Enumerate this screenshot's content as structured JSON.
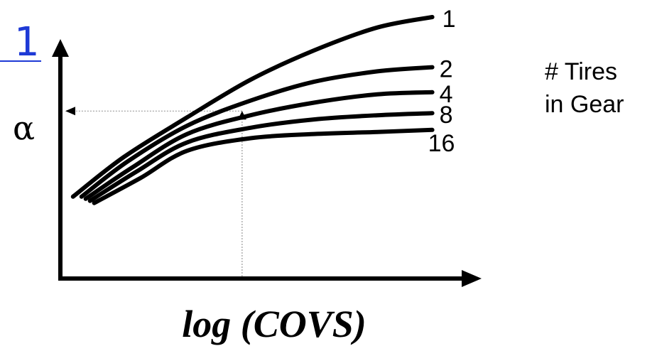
{
  "corner_marker": {
    "text": "1",
    "color": "#1e3ad6"
  },
  "chart_data": {
    "type": "line",
    "ylabel": "α",
    "xlabel": "log (COVS)",
    "legend_title": [
      "# Tires",
      "in Gear"
    ],
    "legend_placement": "right",
    "grid": false,
    "line_color": "#000000",
    "guide_color": "#999999",
    "series": [
      {
        "name": "1",
        "points": [
          [
            0.03,
            0.14
          ],
          [
            0.15,
            0.33
          ],
          [
            0.3,
            0.52
          ],
          [
            0.45,
            0.7
          ],
          [
            0.6,
            0.84
          ],
          [
            0.75,
            0.95
          ],
          [
            0.88,
            1.0
          ]
        ]
      },
      {
        "name": "2",
        "points": [
          [
            0.05,
            0.14
          ],
          [
            0.16,
            0.31
          ],
          [
            0.3,
            0.48
          ],
          [
            0.45,
            0.6
          ],
          [
            0.6,
            0.69
          ],
          [
            0.75,
            0.74
          ],
          [
            0.88,
            0.76
          ]
        ]
      },
      {
        "name": "4",
        "points": [
          [
            0.06,
            0.13
          ],
          [
            0.17,
            0.28
          ],
          [
            0.3,
            0.44
          ],
          [
            0.45,
            0.53
          ],
          [
            0.6,
            0.59
          ],
          [
            0.75,
            0.63
          ],
          [
            0.88,
            0.64
          ]
        ]
      },
      {
        "name": "8",
        "points": [
          [
            0.07,
            0.12
          ],
          [
            0.18,
            0.26
          ],
          [
            0.3,
            0.4
          ],
          [
            0.45,
            0.47
          ],
          [
            0.6,
            0.51
          ],
          [
            0.75,
            0.53
          ],
          [
            0.88,
            0.54
          ]
        ]
      },
      {
        "name": "16",
        "points": [
          [
            0.08,
            0.11
          ],
          [
            0.19,
            0.23
          ],
          [
            0.3,
            0.36
          ],
          [
            0.45,
            0.42
          ],
          [
            0.6,
            0.44
          ],
          [
            0.75,
            0.45
          ],
          [
            0.88,
            0.46
          ]
        ]
      }
    ],
    "guide_point": {
      "x": 0.43,
      "y": 0.55,
      "series": "1"
    }
  }
}
